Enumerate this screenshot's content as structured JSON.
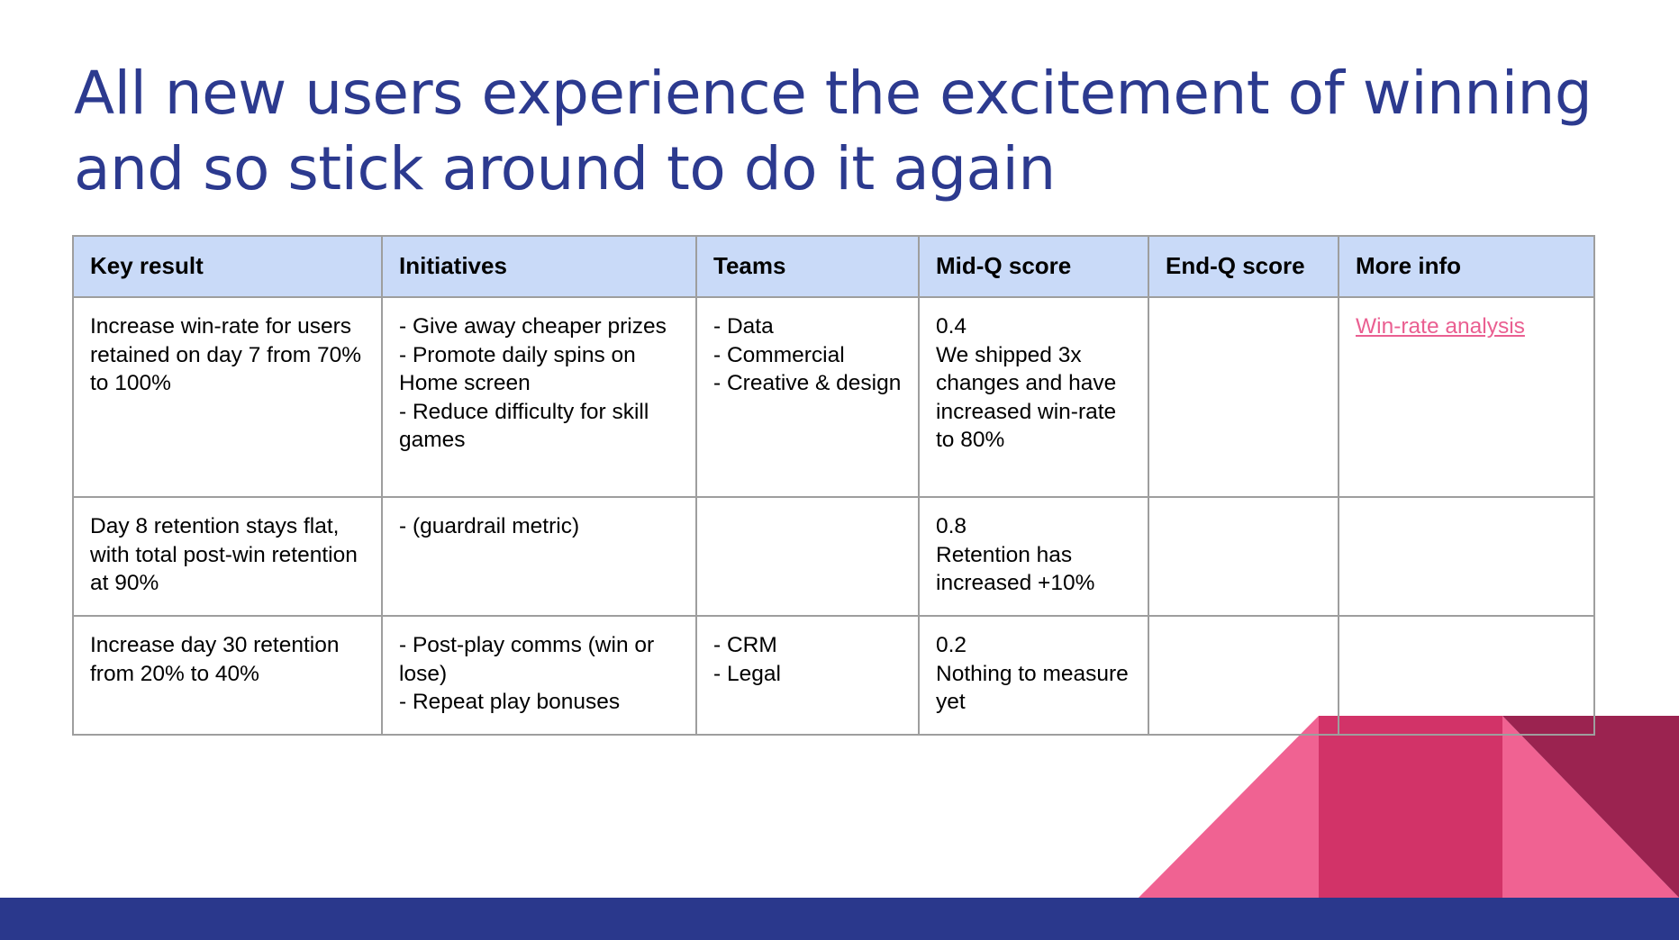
{
  "slide": {
    "title_line_1": "All new users experience the excitement of winning",
    "title_line_2": "and so stick around to do it again"
  },
  "table": {
    "headers": [
      "Key result",
      "Initiatives",
      "Teams",
      "Mid-Q score",
      "End-Q score",
      "More info"
    ],
    "rows": [
      {
        "key_result": "Increase win-rate for users retained on day 7 from 70% to 100%",
        "initiatives": [
          "- Give away cheaper prizes",
          "- Promote daily spins on Home screen",
          "- Reduce difficulty for skill games"
        ],
        "teams": [
          "- Data",
          "- Commercial",
          "- Creative & design"
        ],
        "mid_q_score": "0.4",
        "mid_q_note": "We shipped 3x changes and have increased win-rate to 80%",
        "end_q_score": "",
        "more_info": "Win-rate analysis"
      },
      {
        "key_result": "Day 8 retention stays flat, with total post-win retention at 90%",
        "initiatives": [
          "- (guardrail metric)"
        ],
        "teams": [],
        "mid_q_score": "0.8",
        "mid_q_note": "Retention has increased +10%",
        "end_q_score": "",
        "more_info": ""
      },
      {
        "key_result": "Increase day 30 retention from 20% to 40%",
        "initiatives": [
          "- Post-play comms (win or lose)",
          "- Repeat play bonuses"
        ],
        "teams": [
          "- CRM",
          "- Legal"
        ],
        "mid_q_score": "0.2",
        "mid_q_note": "Nothing to measure yet",
        "end_q_score": "",
        "more_info": ""
      }
    ]
  },
  "colors": {
    "title": "#2c3a8f",
    "header_bg": "#c9daf8",
    "link": "#ea5f91",
    "footer": "#2a388c",
    "decor_pink": "#f06292",
    "decor_magenta": "#d23368",
    "decor_dark": "#9b2350"
  }
}
